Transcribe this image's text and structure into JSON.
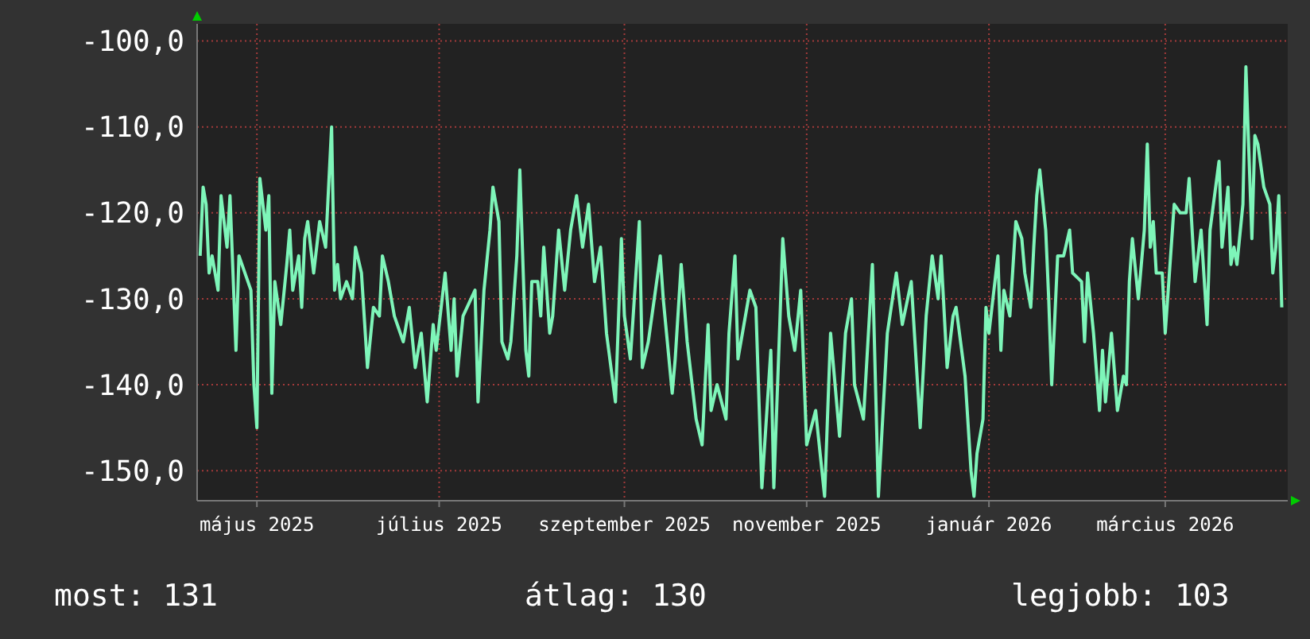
{
  "chart_data": {
    "type": "line",
    "x": [
      "2025-04-12",
      "2025-04-13",
      "2025-04-14",
      "2025-04-15",
      "2025-04-16",
      "2025-04-18",
      "2025-04-19",
      "2025-04-21",
      "2025-04-22",
      "2025-04-24",
      "2025-04-25",
      "2025-04-29",
      "2025-04-30",
      "2025-05-01",
      "2025-05-02",
      "2025-05-04",
      "2025-05-05",
      "2025-05-06",
      "2025-05-07",
      "2025-05-09",
      "2025-05-11",
      "2025-05-12",
      "2025-05-13",
      "2025-05-15",
      "2025-05-16",
      "2025-05-17",
      "2025-05-18",
      "2025-05-20",
      "2025-05-22",
      "2025-05-24",
      "2025-05-26",
      "2025-05-27",
      "2025-05-28",
      "2025-05-29",
      "2025-05-31",
      "2025-06-02",
      "2025-06-03",
      "2025-06-05",
      "2025-06-07",
      "2025-06-09",
      "2025-06-11",
      "2025-06-12",
      "2025-06-14",
      "2025-06-16",
      "2025-06-19",
      "2025-06-21",
      "2025-06-23",
      "2025-06-25",
      "2025-06-27",
      "2025-06-29",
      "2025-06-30",
      "2025-07-03",
      "2025-07-05",
      "2025-07-06",
      "2025-07-07",
      "2025-07-09",
      "2025-07-13",
      "2025-07-14",
      "2025-07-16",
      "2025-07-18",
      "2025-07-19",
      "2025-07-21",
      "2025-07-22",
      "2025-07-24",
      "2025-07-25",
      "2025-07-27",
      "2025-07-28",
      "2025-07-30",
      "2025-07-31",
      "2025-08-01",
      "2025-08-03",
      "2025-08-04",
      "2025-08-05",
      "2025-08-07",
      "2025-08-08",
      "2025-08-10",
      "2025-08-12",
      "2025-08-14",
      "2025-08-16",
      "2025-08-18",
      "2025-08-20",
      "2025-08-22",
      "2025-08-24",
      "2025-08-26",
      "2025-08-29",
      "2025-08-31",
      "2025-09-01",
      "2025-09-03",
      "2025-09-06",
      "2025-09-07",
      "2025-09-09",
      "2025-09-13",
      "2025-09-14",
      "2025-09-17",
      "2025-09-18",
      "2025-09-20",
      "2025-09-22",
      "2025-09-25",
      "2025-09-27",
      "2025-09-29",
      "2025-09-30",
      "2025-10-02",
      "2025-10-05",
      "2025-10-06",
      "2025-10-08",
      "2025-10-09",
      "2025-10-13",
      "2025-10-15",
      "2025-10-17",
      "2025-10-20",
      "2025-10-21",
      "2025-10-23",
      "2025-10-24",
      "2025-10-26",
      "2025-10-28",
      "2025-10-30",
      "2025-11-01",
      "2025-11-04",
      "2025-11-07",
      "2025-11-09",
      "2025-11-12",
      "2025-11-14",
      "2025-11-16",
      "2025-11-17",
      "2025-11-20",
      "2025-11-23",
      "2025-11-25",
      "2025-11-28",
      "2025-12-01",
      "2025-12-03",
      "2025-12-06",
      "2025-12-09",
      "2025-12-11",
      "2025-12-13",
      "2025-12-15",
      "2025-12-16",
      "2025-12-18",
      "2025-12-20",
      "2025-12-21",
      "2025-12-24",
      "2025-12-26",
      "2025-12-27",
      "2025-12-28",
      "2025-12-30",
      "2025-12-31",
      "2026-01-01",
      "2026-01-04",
      "2026-01-05",
      "2026-01-06",
      "2026-01-08",
      "2026-01-10",
      "2026-01-12",
      "2026-01-13",
      "2026-01-15",
      "2026-01-16",
      "2026-01-17",
      "2026-01-18",
      "2026-01-20",
      "2026-01-21",
      "2026-01-22",
      "2026-01-24",
      "2026-01-26",
      "2026-01-28",
      "2026-01-29",
      "2026-02-01",
      "2026-02-02",
      "2026-02-03",
      "2026-02-05",
      "2026-02-07",
      "2026-02-08",
      "2026-02-09",
      "2026-02-11",
      "2026-02-13",
      "2026-02-15",
      "2026-02-16",
      "2026-02-17",
      "2026-02-18",
      "2026-02-20",
      "2026-02-22",
      "2026-02-23",
      "2026-02-24",
      "2026-02-25",
      "2026-02-26",
      "2026-02-28",
      "2026-03-01",
      "2026-03-04",
      "2026-03-06",
      "2026-03-08",
      "2026-03-09",
      "2026-03-11",
      "2026-03-13",
      "2026-03-15",
      "2026-03-16",
      "2026-03-19",
      "2026-03-20",
      "2026-03-22",
      "2026-03-23",
      "2026-03-24",
      "2026-03-25",
      "2026-03-27",
      "2026-03-28",
      "2026-03-30",
      "2026-03-31",
      "2026-04-01",
      "2026-04-03",
      "2026-04-05",
      "2026-04-06",
      "2026-04-07",
      "2026-04-08",
      "2026-04-09"
    ],
    "series": [
      {
        "color": "#7ef5b9",
        "values": [
          -125,
          -117,
          -119,
          -127,
          -125,
          -129,
          -118,
          -124,
          -118,
          -136,
          -125,
          -129,
          -140,
          -145,
          -116,
          -122,
          -118,
          -141,
          -128,
          -133,
          -126,
          -122,
          -129,
          -125,
          -131,
          -123,
          -121,
          -127,
          -121,
          -124,
          -110,
          -129,
          -126,
          -130,
          -128,
          -130,
          -124,
          -127,
          -138,
          -131,
          -132,
          -125,
          -128,
          -132,
          -135,
          -131,
          -138,
          -134,
          -142,
          -133,
          -136,
          -127,
          -136,
          -130,
          -139,
          -132,
          -129,
          -142,
          -129,
          -122,
          -117,
          -121,
          -135,
          -137,
          -135,
          -125,
          -115,
          -136,
          -139,
          -128,
          -128,
          -132,
          -124,
          -134,
          -132,
          -122,
          -129,
          -122,
          -118,
          -124,
          -119,
          -128,
          -124,
          -134,
          -142,
          -123,
          -132,
          -137,
          -121,
          -138,
          -135,
          -125,
          -130,
          -141,
          -137,
          -126,
          -135,
          -144,
          -147,
          -133,
          -143,
          -140,
          -144,
          -134,
          -125,
          -137,
          -129,
          -131,
          -152,
          -136,
          -152,
          -133,
          -123,
          -132,
          -136,
          -129,
          -147,
          -143,
          -153,
          -134,
          -146,
          -134,
          -130,
          -140,
          -144,
          -126,
          -153,
          -134,
          -127,
          -133,
          -128,
          -145,
          -132,
          -125,
          -130,
          -125,
          -138,
          -132,
          -131,
          -139,
          -150,
          -153,
          -148,
          -144,
          -131,
          -134,
          -125,
          -136,
          -129,
          -132,
          -121,
          -123,
          -127,
          -131,
          -124,
          -118,
          -115,
          -122,
          -130,
          -140,
          -125,
          -125,
          -122,
          -127,
          -128,
          -135,
          -127,
          -134,
          -143,
          -136,
          -142,
          -134,
          -143,
          -139,
          -140,
          -128,
          -123,
          -130,
          -122,
          -112,
          -124,
          -121,
          -127,
          -127,
          -134,
          -119,
          -120,
          -120,
          -116,
          -128,
          -122,
          -133,
          -122,
          -114,
          -124,
          -117,
          -126,
          -124,
          -126,
          -119,
          -103,
          -123,
          -111,
          -112,
          -117,
          -119,
          -127,
          -124,
          -118,
          -131
        ]
      }
    ],
    "ylim": [
      -153.5,
      -98
    ],
    "yticks": [
      {
        "value": -150,
        "label": "-150,0"
      },
      {
        "value": -140,
        "label": "-140,0"
      },
      {
        "value": -130,
        "label": "-130,0"
      },
      {
        "value": -120,
        "label": "-120,0"
      },
      {
        "value": -110,
        "label": "-110,0"
      },
      {
        "value": -100,
        "label": "-100,0"
      }
    ],
    "xlim": [
      "2025-04-11",
      "2026-04-11"
    ],
    "xticks": [
      {
        "value": "2025-05-01",
        "label": "május 2025"
      },
      {
        "value": "2025-07-01",
        "label": "július 2025"
      },
      {
        "value": "2025-09-01",
        "label": "szeptember 2025"
      },
      {
        "value": "2025-11-01",
        "label": "november 2025"
      },
      {
        "value": "2026-01-01",
        "label": "január 2026"
      },
      {
        "value": "2026-03-01",
        "label": "március 2026"
      }
    ],
    "grid": true,
    "line_style": "solid",
    "marker": "none",
    "annotations": [
      "most: 131",
      "átlag: 130",
      "legjobb: 103"
    ]
  }
}
